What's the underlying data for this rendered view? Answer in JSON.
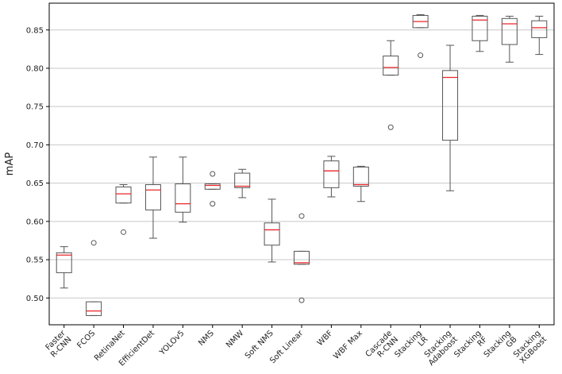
{
  "chart_data": {
    "type": "boxplot",
    "title": "",
    "xlabel": "",
    "ylabel": "mAP",
    "ylim": [
      0.465,
      0.885
    ],
    "yticks": [
      0.5,
      0.55,
      0.6,
      0.65,
      0.7,
      0.75,
      0.8,
      0.85
    ],
    "ytick_labels": [
      "0.50",
      "0.55",
      "0.60",
      "0.65",
      "0.70",
      "0.75",
      "0.80",
      "0.85"
    ],
    "grid": "horizontal",
    "colors": {
      "box": "#555555",
      "median": "#e8262a",
      "grid": "#c8c8c8",
      "axis": "#000000"
    },
    "categories": [
      {
        "label": [
          "Faster",
          "R-CNN"
        ],
        "min": 0.513,
        "q1": 0.533,
        "median": 0.556,
        "q3": 0.559,
        "max": 0.567,
        "outliers": []
      },
      {
        "label": [
          "FCOS"
        ],
        "min": 0.477,
        "q1": 0.477,
        "median": 0.483,
        "q3": 0.495,
        "max": 0.495,
        "outliers": [
          0.572
        ]
      },
      {
        "label": [
          "RetinaNet"
        ],
        "min": 0.624,
        "q1": 0.624,
        "median": 0.636,
        "q3": 0.645,
        "max": 0.648,
        "outliers": [
          0.586
        ]
      },
      {
        "label": [
          "EfficientDet"
        ],
        "min": 0.578,
        "q1": 0.615,
        "median": 0.641,
        "q3": 0.648,
        "max": 0.684,
        "outliers": []
      },
      {
        "label": [
          "YOLOv5"
        ],
        "min": 0.599,
        "q1": 0.612,
        "median": 0.623,
        "q3": 0.649,
        "max": 0.684,
        "outliers": []
      },
      {
        "label": [
          "NMS"
        ],
        "min": 0.642,
        "q1": 0.642,
        "median": 0.647,
        "q3": 0.649,
        "max": 0.649,
        "outliers": [
          0.662,
          0.623
        ]
      },
      {
        "label": [
          "NMW"
        ],
        "min": 0.631,
        "q1": 0.644,
        "median": 0.646,
        "q3": 0.663,
        "max": 0.668,
        "outliers": []
      },
      {
        "label": [
          "Soft NMS"
        ],
        "min": 0.547,
        "q1": 0.569,
        "median": 0.589,
        "q3": 0.598,
        "max": 0.629,
        "outliers": []
      },
      {
        "label": [
          "Soft Linear"
        ],
        "min": 0.544,
        "q1": 0.544,
        "median": 0.546,
        "q3": 0.561,
        "max": 0.561,
        "outliers": [
          0.607,
          0.497
        ]
      },
      {
        "label": [
          "WBF"
        ],
        "min": 0.632,
        "q1": 0.644,
        "median": 0.666,
        "q3": 0.679,
        "max": 0.685,
        "outliers": []
      },
      {
        "label": [
          "WBF Max"
        ],
        "min": 0.626,
        "q1": 0.646,
        "median": 0.648,
        "q3": 0.671,
        "max": 0.672,
        "outliers": []
      },
      {
        "label": [
          "Cascade",
          "R-CNN"
        ],
        "min": 0.791,
        "q1": 0.791,
        "median": 0.801,
        "q3": 0.816,
        "max": 0.836,
        "outliers": [
          0.723
        ]
      },
      {
        "label": [
          "Stacking",
          "LR"
        ],
        "min": 0.853,
        "q1": 0.853,
        "median": 0.861,
        "q3": 0.869,
        "max": 0.87,
        "outliers": [
          0.817
        ]
      },
      {
        "label": [
          "Stacking",
          "Adaboost"
        ],
        "min": 0.64,
        "q1": 0.706,
        "median": 0.788,
        "q3": 0.797,
        "max": 0.83,
        "outliers": []
      },
      {
        "label": [
          "Stacking",
          "RF"
        ],
        "min": 0.822,
        "q1": 0.836,
        "median": 0.863,
        "q3": 0.868,
        "max": 0.869,
        "outliers": []
      },
      {
        "label": [
          "Stacking",
          "GB"
        ],
        "min": 0.808,
        "q1": 0.831,
        "median": 0.858,
        "q3": 0.865,
        "max": 0.868,
        "outliers": []
      },
      {
        "label": [
          "Stacking",
          "XGBoost"
        ],
        "min": 0.818,
        "q1": 0.84,
        "median": 0.853,
        "q3": 0.862,
        "max": 0.868,
        "outliers": []
      }
    ]
  }
}
